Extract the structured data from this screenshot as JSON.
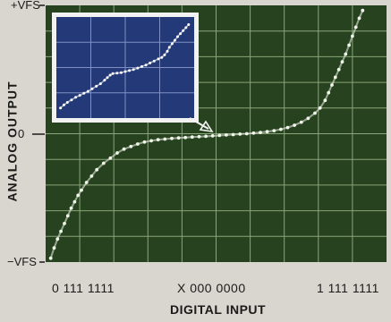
{
  "colors": {
    "screen_background": "#27421f",
    "grid": "#8aa57a",
    "trace": "#f0f5ea",
    "inset_background": "#243a78",
    "inset_grid": "#7f8fc2",
    "inset_trace": "#ffffff",
    "inset_frame": "#f2f2f2",
    "page_background": "#d9d6cf"
  },
  "chart_data": [
    {
      "type": "scatter",
      "title": "",
      "xlabel": "DIGITAL INPUT",
      "ylabel": "ANALOG OUTPUT",
      "x_ticks": [
        "0 111 1111",
        "X 000 0000",
        "1 111 1111"
      ],
      "y_ticks": [
        "+VFS",
        "0",
        "−VFS"
      ],
      "x_range": [
        -1,
        1
      ],
      "y_range": [
        -1,
        1
      ],
      "grid": true,
      "grid_divisions": {
        "x": 10,
        "y": 10
      },
      "series": [
        {
          "points": [
            [
              -0.97,
              -0.97
            ],
            [
              -0.95,
              -0.89
            ],
            [
              -0.93,
              -0.82
            ],
            [
              -0.91,
              -0.76
            ],
            [
              -0.89,
              -0.7
            ],
            [
              -0.87,
              -0.64
            ],
            [
              -0.85,
              -0.58
            ],
            [
              -0.83,
              -0.53
            ],
            [
              -0.81,
              -0.48
            ],
            [
              -0.79,
              -0.44
            ],
            [
              -0.76,
              -0.38
            ],
            [
              -0.73,
              -0.33
            ],
            [
              -0.7,
              -0.28
            ],
            [
              -0.66,
              -0.23
            ],
            [
              -0.62,
              -0.19
            ],
            [
              -0.58,
              -0.15
            ],
            [
              -0.54,
              -0.12
            ],
            [
              -0.5,
              -0.1
            ],
            [
              -0.46,
              -0.08
            ],
            [
              -0.42,
              -0.065
            ],
            [
              -0.38,
              -0.055
            ],
            [
              -0.34,
              -0.047
            ],
            [
              -0.3,
              -0.042
            ],
            [
              -0.26,
              -0.037
            ],
            [
              -0.22,
              -0.033
            ],
            [
              -0.18,
              -0.03
            ],
            [
              -0.14,
              -0.026
            ],
            [
              -0.1,
              -0.023
            ],
            [
              -0.06,
              -0.02
            ],
            [
              -0.02,
              -0.017
            ],
            [
              0.02,
              -0.013
            ],
            [
              0.06,
              -0.01
            ],
            [
              0.1,
              -0.007
            ],
            [
              0.14,
              -0.003
            ],
            [
              0.18,
              0.0
            ],
            [
              0.22,
              0.005
            ],
            [
              0.26,
              0.01
            ],
            [
              0.3,
              0.016
            ],
            [
              0.34,
              0.024
            ],
            [
              0.38,
              0.034
            ],
            [
              0.42,
              0.048
            ],
            [
              0.46,
              0.066
            ],
            [
              0.5,
              0.09
            ],
            [
              0.54,
              0.12
            ],
            [
              0.58,
              0.16
            ],
            [
              0.61,
              0.2
            ],
            [
              0.64,
              0.26
            ],
            [
              0.66,
              0.32
            ],
            [
              0.68,
              0.38
            ],
            [
              0.7,
              0.44
            ],
            [
              0.72,
              0.5
            ],
            [
              0.74,
              0.56
            ],
            [
              0.76,
              0.62
            ],
            [
              0.78,
              0.69
            ],
            [
              0.8,
              0.76
            ],
            [
              0.82,
              0.83
            ],
            [
              0.84,
              0.9
            ],
            [
              0.86,
              0.96
            ]
          ]
        }
      ]
    },
    {
      "type": "scatter",
      "title": "",
      "grid": true,
      "grid_divisions": {
        "x": 4,
        "y": 4
      },
      "x_range": [
        -1,
        1
      ],
      "y_range": [
        -1,
        1
      ],
      "series": [
        {
          "points": [
            [
              -0.94,
              -0.8
            ],
            [
              -0.89,
              -0.74
            ],
            [
              -0.84,
              -0.69
            ],
            [
              -0.78,
              -0.64
            ],
            [
              -0.72,
              -0.59
            ],
            [
              -0.66,
              -0.55
            ],
            [
              -0.6,
              -0.51
            ],
            [
              -0.54,
              -0.47
            ],
            [
              -0.48,
              -0.42
            ],
            [
              -0.42,
              -0.37
            ],
            [
              -0.36,
              -0.32
            ],
            [
              -0.3,
              -0.25
            ],
            [
              -0.26,
              -0.2
            ],
            [
              -0.22,
              -0.15
            ],
            [
              -0.18,
              -0.12
            ],
            [
              -0.12,
              -0.11
            ],
            [
              -0.06,
              -0.1
            ],
            [
              0.0,
              -0.08
            ],
            [
              0.06,
              -0.06
            ],
            [
              0.12,
              -0.04
            ],
            [
              0.18,
              -0.01
            ],
            [
              0.24,
              0.02
            ],
            [
              0.3,
              0.05
            ],
            [
              0.36,
              0.09
            ],
            [
              0.42,
              0.13
            ],
            [
              0.48,
              0.17
            ],
            [
              0.53,
              0.2
            ],
            [
              0.57,
              0.25
            ],
            [
              0.61,
              0.32
            ],
            [
              0.64,
              0.4
            ],
            [
              0.68,
              0.47
            ],
            [
              0.72,
              0.54
            ],
            [
              0.76,
              0.61
            ],
            [
              0.8,
              0.67
            ],
            [
              0.84,
              0.73
            ],
            [
              0.88,
              0.79
            ],
            [
              0.92,
              0.85
            ]
          ]
        }
      ]
    }
  ]
}
